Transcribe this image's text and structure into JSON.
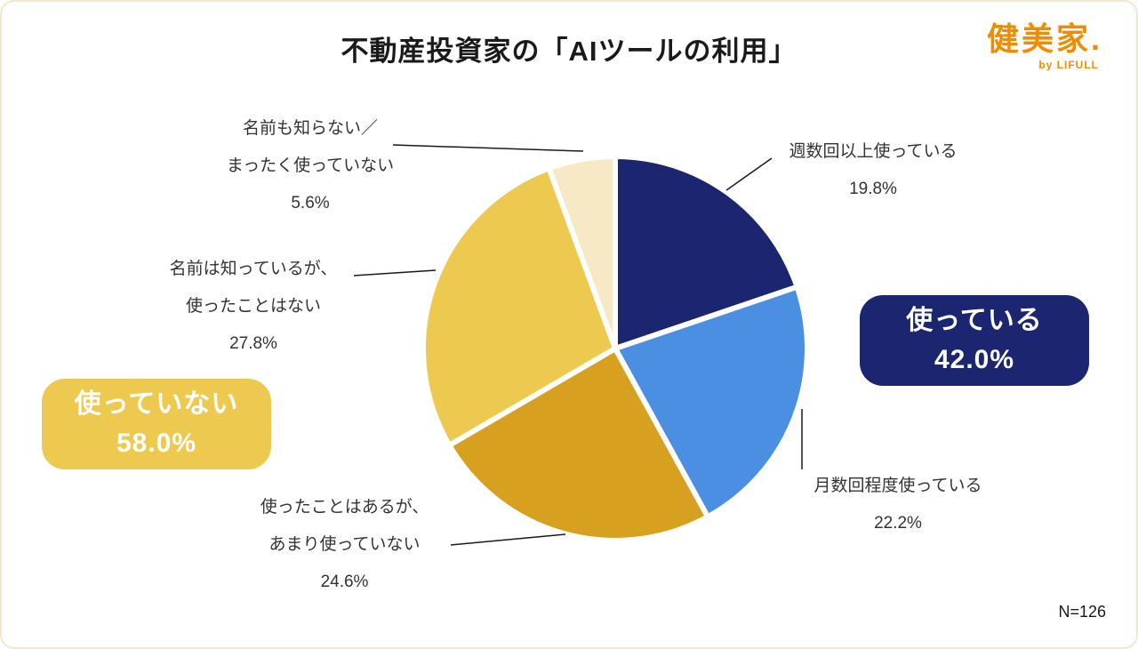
{
  "page": {
    "title": "不動産投資家の「AIツールの利用」",
    "sample_size": "N=126"
  },
  "logo": {
    "brand": "健美家.",
    "sub": "by LIFULL",
    "color": "#f08c00"
  },
  "chart_data": {
    "type": "pie",
    "title": "不動産投資家の「AIツールの利用」",
    "start_angle_deg": 0,
    "direction": "clockwise",
    "sample_size": 126,
    "slices": [
      {
        "label": "週数回以上使っている",
        "value": 19.8,
        "pct": "19.8%",
        "color": "#1b2570",
        "lines": [
          "週数回以上使っている"
        ]
      },
      {
        "label": "月数回程度使っている",
        "value": 22.2,
        "pct": "22.2%",
        "color": "#4b8fe2",
        "lines": [
          "月数回程度使っている"
        ]
      },
      {
        "label": "使ったことはあるが、あまり使っていない",
        "value": 24.6,
        "pct": "24.6%",
        "color": "#d7a11f",
        "lines": [
          "使ったことはあるが、",
          "あまり使っていない"
        ]
      },
      {
        "label": "名前は知っているが、使ったことはない",
        "value": 27.8,
        "pct": "27.8%",
        "color": "#eec94f",
        "lines": [
          "名前は知っているが、",
          "使ったことはない"
        ]
      },
      {
        "label": "名前も知らない／まったく使っていない",
        "value": 5.6,
        "pct": "5.6%",
        "color": "#f8e9c6",
        "lines": [
          "名前も知らない／",
          "まったく使っていない"
        ]
      }
    ],
    "aggregates": [
      {
        "label": "使っている",
        "pct": "42.0%",
        "value": 42.0,
        "color": "#1b2570"
      },
      {
        "label": "使っていない",
        "pct": "58.0%",
        "value": 58.0,
        "color": "#eec94f"
      }
    ]
  }
}
